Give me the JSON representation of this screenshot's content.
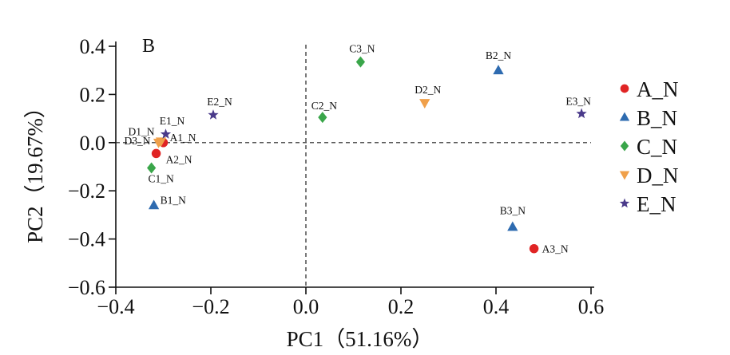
{
  "chart_data": {
    "type": "scatter",
    "panel_letter": "B",
    "xlabel": "PC1（51.16%）",
    "ylabel": "PC2（19.67%）",
    "xlim": [
      -0.4,
      0.6
    ],
    "ylim": [
      -0.6,
      0.4
    ],
    "x_ticks": [
      -0.4,
      -0.2,
      0.0,
      0.2,
      0.4,
      0.6
    ],
    "y_ticks": [
      -0.6,
      -0.4,
      -0.2,
      0.0,
      0.2,
      0.4
    ],
    "x_tick_labels": [
      "−0.4",
      "−0.2",
      "0.0",
      "0.2",
      "0.4",
      "0.6"
    ],
    "y_tick_labels": [
      "−0.6",
      "−0.4",
      "−0.2",
      "0.0",
      "0.2",
      "0.4"
    ],
    "reference_lines": {
      "x": 0.0,
      "y": 0.0,
      "style": "dashed"
    },
    "grid": false,
    "legend_position": "right",
    "series": [
      {
        "name": "A_N",
        "marker": "circle",
        "color": "#e02424",
        "points": [
          {
            "label": "A1_N",
            "x": -0.3,
            "y": 0.0
          },
          {
            "label": "A2_N",
            "x": -0.315,
            "y": -0.045
          },
          {
            "label": "A3_N",
            "x": 0.48,
            "y": -0.44
          }
        ]
      },
      {
        "name": "B_N",
        "marker": "triangle-up",
        "color": "#2e6bb0",
        "points": [
          {
            "label": "B1_N",
            "x": -0.32,
            "y": -0.26
          },
          {
            "label": "B2_N",
            "x": 0.405,
            "y": 0.3
          },
          {
            "label": "B3_N",
            "x": 0.435,
            "y": -0.35
          }
        ]
      },
      {
        "name": "C_N",
        "marker": "diamond",
        "color": "#3aa64a",
        "points": [
          {
            "label": "C1_N",
            "x": -0.325,
            "y": -0.105
          },
          {
            "label": "C2_N",
            "x": 0.035,
            "y": 0.105
          },
          {
            "label": "C3_N",
            "x": 0.115,
            "y": 0.335
          }
        ]
      },
      {
        "name": "D_N",
        "marker": "triangle-down",
        "color": "#f0a04a",
        "points": [
          {
            "label": "D1_N",
            "x": -0.305,
            "y": 0.005
          },
          {
            "label": "D2_N",
            "x": 0.25,
            "y": 0.165
          },
          {
            "label": "D3_N",
            "x": -0.31,
            "y": 0.0
          }
        ]
      },
      {
        "name": "E_N",
        "marker": "star",
        "color": "#4a3a8a",
        "points": [
          {
            "label": "E1_N",
            "x": -0.295,
            "y": 0.035
          },
          {
            "label": "E2_N",
            "x": -0.195,
            "y": 0.115
          },
          {
            "label": "E3_N",
            "x": 0.58,
            "y": 0.12
          }
        ]
      }
    ]
  }
}
